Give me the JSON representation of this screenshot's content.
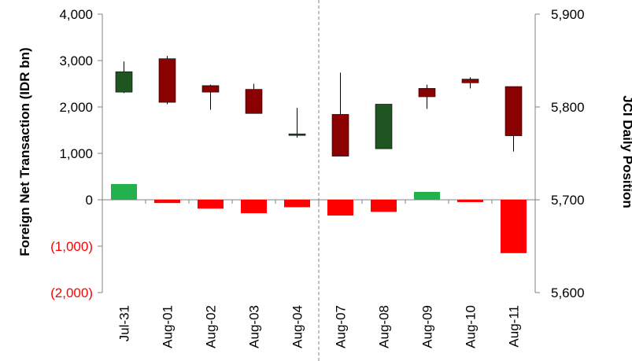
{
  "chart_data": {
    "type": "bar",
    "categories": [
      "Jul-31",
      "Aug-01",
      "Aug-02",
      "Aug-03",
      "Aug-04",
      "Aug-07",
      "Aug-08",
      "Aug-09",
      "Aug-10",
      "Aug-11"
    ],
    "series": [
      {
        "name": "Foreign Net Transaction",
        "axis": "left",
        "values": [
          340,
          -70,
          -190,
          -290,
          -160,
          -340,
          -260,
          170,
          -50,
          -1150
        ]
      },
      {
        "name": "JCI Daily Position",
        "axis": "right",
        "type": "candlestick",
        "open": [
          5816,
          5852,
          5823,
          5819,
          5770,
          5792,
          5755,
          5820,
          5830,
          5822
        ],
        "high": [
          5849,
          5855,
          5824,
          5825,
          5799,
          5837,
          5803,
          5824,
          5832,
          5822
        ],
        "low": [
          5815,
          5803,
          5797,
          5793,
          5767,
          5747,
          5755,
          5798,
          5820,
          5752
        ],
        "close": [
          5838,
          5805,
          5816,
          5793,
          5771,
          5747,
          5803,
          5811,
          5826,
          5769
        ],
        "up_color": "#1e5520",
        "down_color": "#8b0000"
      }
    ],
    "bar_colors": {
      "positive": "#22b14c",
      "negative": "#ff0000"
    },
    "ylabel": "Foreign Net Transaction (IDR bn)",
    "y2label": "JCI Daily Position",
    "ylim": [
      -2000,
      4000
    ],
    "y2lim": [
      5600,
      5900
    ],
    "yticks": [
      {
        "value": 4000,
        "label": "4,000"
      },
      {
        "value": 3000,
        "label": "3,000"
      },
      {
        "value": 2000,
        "label": "2,000"
      },
      {
        "value": 1000,
        "label": "1,000"
      },
      {
        "value": 0,
        "label": "0"
      },
      {
        "value": -1000,
        "label": "(1,000)"
      },
      {
        "value": -2000,
        "label": "(2,000)"
      }
    ],
    "y2ticks": [
      {
        "value": 5900,
        "label": "5,900"
      },
      {
        "value": 5800,
        "label": "5,800"
      },
      {
        "value": 5700,
        "label": "5,700"
      },
      {
        "value": 5600,
        "label": "5,600"
      }
    ],
    "separator_after": "Aug-04",
    "grid": false,
    "legend": "none"
  }
}
